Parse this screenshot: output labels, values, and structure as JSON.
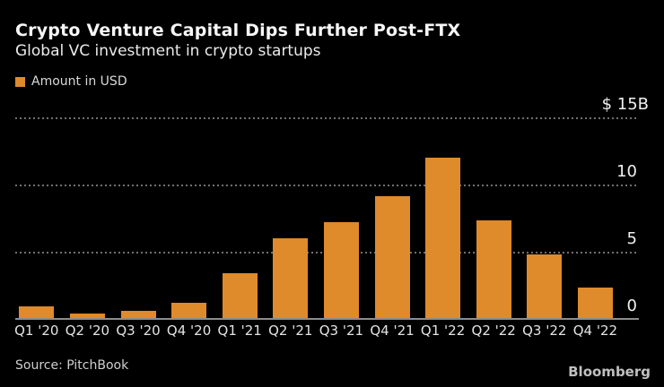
{
  "header": {
    "title": "Crypto Venture Capital Dips Further Post-FTX",
    "subtitle": "Global VC investment in crypto startups"
  },
  "legend": {
    "label": "Amount in USD",
    "swatch_color": "#DF8A2B"
  },
  "chart_data": {
    "type": "bar",
    "title": "Crypto Venture Capital Dips Further Post-FTX",
    "subtitle": "Global VC investment in crypto startups",
    "series_name": "Amount in USD",
    "categories": [
      "Q1 '20",
      "Q2 '20",
      "Q3 '20",
      "Q4 '20",
      "Q1 '21",
      "Q2 '21",
      "Q3 '21",
      "Q4 '21",
      "Q1 '22",
      "Q2 '22",
      "Q3 '22",
      "Q4 '22"
    ],
    "values": [
      1.0,
      0.5,
      0.7,
      1.3,
      3.5,
      6.1,
      7.3,
      9.2,
      12.1,
      7.4,
      4.9,
      2.4
    ],
    "unit": "USD billions",
    "ylim": [
      0,
      15
    ],
    "y_ticks": [
      {
        "label": "$ 15B",
        "value": 15
      },
      {
        "label": "10",
        "value": 10
      },
      {
        "label": "5",
        "value": 5
      },
      {
        "label": "0",
        "value": 0
      }
    ],
    "dotted_gridline_values": [
      15,
      10,
      5
    ],
    "bar_color": "#DF8A2B",
    "grid": true,
    "legend_position": "top-left",
    "background_color": "#000000"
  },
  "footer": {
    "source": "Source: PitchBook",
    "brand": "Bloomberg"
  }
}
